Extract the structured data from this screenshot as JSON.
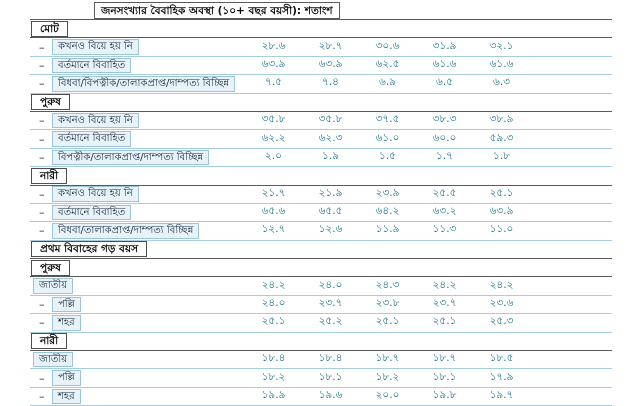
{
  "page": {
    "title": "জনসংখ্যার বৈবাহিক অবস্থা (১০+ বছর বয়সী): শতাংশ"
  },
  "marks": {
    "dash": "–"
  },
  "colors": {
    "value_text": "#19738e",
    "data_row_line": "#a6cddd",
    "section_row_line": "#5a5a5a",
    "label_box_border": "#9cc5d6",
    "label_box_fill": "#e7f3f9",
    "page_background": "#ffffff"
  },
  "table": {
    "groups": [
      {
        "header": "মোট",
        "rows": [
          {
            "dash": true,
            "label": "কখনও বিয়ে হয় নি",
            "values": [
              "২৮.৬",
              "২৮.৭",
              "৩০.৬",
              "৩১.৯",
              "৩২.১"
            ]
          },
          {
            "dash": true,
            "label": "বর্তমানে বিবাহিত",
            "values": [
              "৬৩.৯",
              "৬৩.৯",
              "৬২.৫",
              "৬১.৬",
              "৬১.৬"
            ]
          },
          {
            "dash": true,
            "label": "বিধবা/বিপত্নীক/তালাকপ্রাপ্ত/দাম্পত্য বিচ্ছিন্ন",
            "values": [
              "৭.৫",
              "৭.৪",
              "৬.৯",
              "৬.৫",
              "৬.৩"
            ]
          }
        ]
      },
      {
        "header": "পুরুষ",
        "rows": [
          {
            "dash": true,
            "label": "কখনও বিয়ে হয় নি",
            "values": [
              "৩৫.৮",
              "৩৫.৮",
              "৩৭.৫",
              "৩৮.৩",
              "৩৮.৯"
            ]
          },
          {
            "dash": true,
            "label": "বর্তমানে বিবাহিত",
            "values": [
              "৬২.২",
              "৬২.৩",
              "৬১.০",
              "৬০.০",
              "৫৯.৩"
            ]
          },
          {
            "dash": true,
            "label": "বিপত্নীক/তালাকপ্রাপ্ত/দাম্পত্য বিচ্ছিন্ন",
            "values": [
              "২.০",
              "১.৯",
              "১.৫",
              "১.৭",
              "১.৮"
            ]
          }
        ]
      },
      {
        "header": "নারী",
        "rows": [
          {
            "dash": true,
            "label": "কখনও বিয়ে হয় নি",
            "values": [
              "২১.৭",
              "২১.৯",
              "২৩.৯",
              "২৫.৫",
              "২৫.১"
            ]
          },
          {
            "dash": true,
            "label": "বর্তমানে বিবাহিত",
            "values": [
              "৬৫.৬",
              "৬৫.৫",
              "৬৪.২",
              "৬৩.২",
              "৬৩.৯"
            ]
          },
          {
            "dash": true,
            "label": "বিধবা/তালাকপ্রাপ্ত/দাম্পত্য বিচ্ছিন্ন",
            "values": [
              "১২.৭",
              "১২.৬",
              "১১.৯",
              "১১.৩",
              "১১.০"
            ]
          }
        ]
      },
      {
        "header": "প্রথম বিবাহের গড় বয়স",
        "rows": []
      },
      {
        "header": "পুরুষ",
        "rows": [
          {
            "dash": false,
            "label": "জাতীয়",
            "values": [
              "২৪.২",
              "২৪.০",
              "২৪.৩",
              "২৪.২",
              "২৪.২"
            ]
          },
          {
            "dash": true,
            "label": "পল্লি",
            "values": [
              "২৪.০",
              "২৩.৭",
              "২৩.৮",
              "২৩.৭",
              "২৩.৬"
            ]
          },
          {
            "dash": true,
            "label": "শহর",
            "values": [
              "২৫.১",
              "২৫.২",
              "২৫.১",
              "২৫.১",
              "২৫.৩"
            ]
          }
        ]
      },
      {
        "header": "নারী",
        "rows": [
          {
            "dash": false,
            "label": "জাতীয়",
            "values": [
              "১৮.৪",
              "১৮.৪",
              "১৮.৭",
              "১৮.৭",
              "১৮.৫"
            ]
          },
          {
            "dash": true,
            "label": "পল্লি",
            "values": [
              "১৮.২",
              "১৮.১",
              "১৮.২",
              "১৮.১",
              "১৭.৯"
            ]
          },
          {
            "dash": true,
            "label": "শহর",
            "values": [
              "১৯.৯",
              "১৯.৬",
              "২০.০",
              "১৯.৮",
              "১৯.৭"
            ]
          }
        ]
      }
    ]
  }
}
